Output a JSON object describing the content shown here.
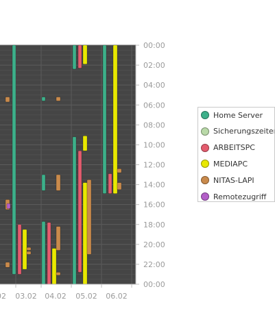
{
  "chart_data": {
    "type": "timeline",
    "y_tick_labels": [
      "00:00",
      "02:00",
      "04:00",
      "06:00",
      "08:00",
      "10:00",
      "12:00",
      "14:00",
      "16:00",
      "18:00",
      "20:00",
      "22:00",
      "00:00"
    ],
    "x_tick_labels": [
      "02",
      "03.02",
      "04.02",
      "05.02",
      "06.02"
    ],
    "y_range_hours": [
      0,
      24
    ],
    "grid": true,
    "legend_position": "right",
    "series": [
      {
        "name": "Home Server",
        "color": "#3db08a"
      },
      {
        "name": "Sicherungszeiten",
        "color": "#b9d9a8"
      },
      {
        "name": "ARBEITSPC",
        "color": "#e45c6e"
      },
      {
        "name": "MEDIAPC",
        "color": "#e8e800"
      },
      {
        "name": "NITAS-LAPI",
        "color": "#c98a4c"
      },
      {
        "name": "Remotezugriff",
        "color": "#b35fc8"
      }
    ],
    "intervals": [
      {
        "series": "NITAS-LAPI",
        "day": "01.02",
        "start": 5.2,
        "end": 5.7
      },
      {
        "series": "NITAS-LAPI",
        "day": "01.02",
        "start": 15.5,
        "end": 16.5
      },
      {
        "series": "Remotezugriff",
        "day": "01.02",
        "start": 15.9,
        "end": 16.4
      },
      {
        "series": "NITAS-LAPI",
        "day": "01.02",
        "start": 21.8,
        "end": 22.3
      },
      {
        "series": "Home Server",
        "day": "02.02",
        "start": 0.0,
        "end": 23.0
      },
      {
        "series": "ARBEITSPC",
        "day": "02.02",
        "start": 18.0,
        "end": 23.0
      },
      {
        "series": "MEDIAPC",
        "day": "02.02",
        "start": 18.5,
        "end": 22.5
      },
      {
        "series": "NITAS-LAPI",
        "day": "02.02",
        "start": 20.3,
        "end": 20.6
      },
      {
        "series": "NITAS-LAPI",
        "day": "02.02",
        "start": 20.7,
        "end": 21.0
      },
      {
        "series": "Home Server",
        "day": "03.02",
        "start": 5.2,
        "end": 5.6
      },
      {
        "series": "Home Server",
        "day": "03.02",
        "start": 13.0,
        "end": 14.6
      },
      {
        "series": "Home Server",
        "day": "03.02",
        "start": 17.7,
        "end": 24.0
      },
      {
        "series": "ARBEITSPC",
        "day": "03.02",
        "start": 17.8,
        "end": 24.0
      },
      {
        "series": "MEDIAPC",
        "day": "03.02",
        "start": 20.4,
        "end": 24.0
      },
      {
        "series": "NITAS-LAPI",
        "day": "03.02",
        "start": 18.2,
        "end": 20.6
      },
      {
        "series": "NITAS-LAPI",
        "day": "03.02",
        "start": 13.0,
        "end": 14.6
      },
      {
        "series": "NITAS-LAPI",
        "day": "03.02",
        "start": 5.2,
        "end": 5.6
      },
      {
        "series": "NITAS-LAPI",
        "day": "03.02",
        "start": 22.8,
        "end": 23.1
      },
      {
        "series": "Home Server",
        "day": "04.02",
        "start": 0.0,
        "end": 2.4
      },
      {
        "series": "Home Server",
        "day": "04.02",
        "start": 9.2,
        "end": 24.0
      },
      {
        "series": "ARBEITSPC",
        "day": "04.02",
        "start": 0.0,
        "end": 2.3
      },
      {
        "series": "ARBEITSPC",
        "day": "04.02",
        "start": 10.6,
        "end": 22.8
      },
      {
        "series": "MEDIAPC",
        "day": "04.02",
        "start": 0.0,
        "end": 1.9
      },
      {
        "series": "MEDIAPC",
        "day": "04.02",
        "start": 9.1,
        "end": 10.6
      },
      {
        "series": "MEDIAPC",
        "day": "04.02",
        "start": 13.8,
        "end": 24.0
      },
      {
        "series": "NITAS-LAPI",
        "day": "04.02",
        "start": 13.5,
        "end": 21.0
      },
      {
        "series": "Home Server",
        "day": "05.02",
        "start": 0.0,
        "end": 14.9
      },
      {
        "series": "ARBEITSPC",
        "day": "05.02",
        "start": 12.9,
        "end": 14.9
      },
      {
        "series": "MEDIAPC",
        "day": "05.02",
        "start": 0.0,
        "end": 14.9
      },
      {
        "series": "NITAS-LAPI",
        "day": "05.02",
        "start": 12.4,
        "end": 12.8
      },
      {
        "series": "NITAS-LAPI",
        "day": "05.02",
        "start": 13.8,
        "end": 14.5
      }
    ]
  }
}
